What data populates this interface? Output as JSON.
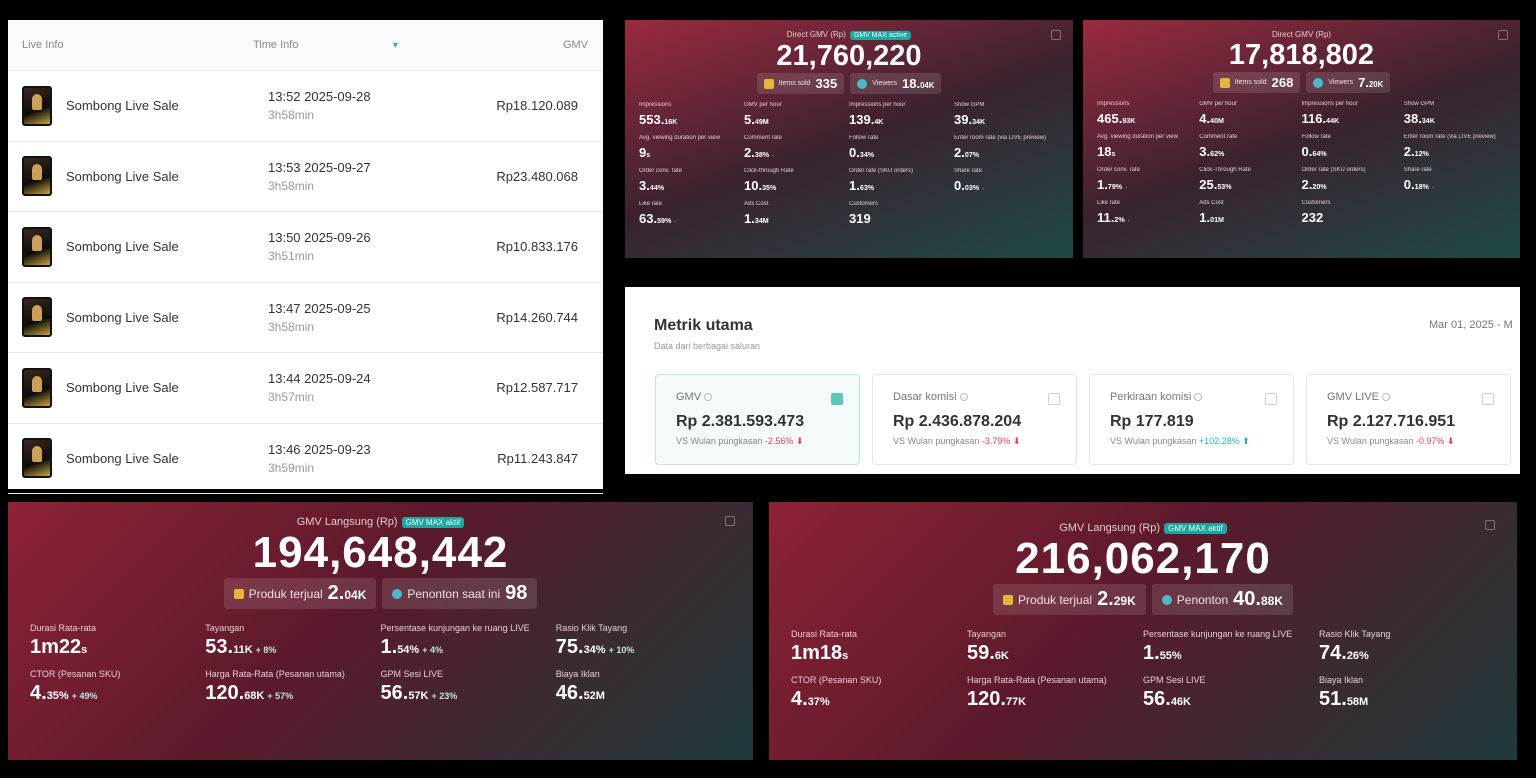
{
  "live_list": {
    "headers": {
      "live_info": "Live Info",
      "time_info": "Time Info",
      "gmv": "GMV"
    },
    "rows": [
      {
        "name": "Sombong Live Sale",
        "time": "13:52 2025-09-28",
        "duration": "3h58min",
        "gmv": "Rp18.120.089"
      },
      {
        "name": "Sombong Live Sale",
        "time": "13:53 2025-09-27",
        "duration": "3h58min",
        "gmv": "Rp23.480.068"
      },
      {
        "name": "Sombong Live Sale",
        "time": "13:50 2025-09-26",
        "duration": "3h51min",
        "gmv": "Rp10.833.176"
      },
      {
        "name": "Sombong Live Sale",
        "time": "13:47 2025-09-25",
        "duration": "3h58min",
        "gmv": "Rp14.260.744"
      },
      {
        "name": "Sombong Live Sale",
        "time": "13:44 2025-09-24",
        "duration": "3h57min",
        "gmv": "Rp12.587.717"
      },
      {
        "name": "Sombong Live Sale",
        "time": "13:46 2025-09-23",
        "duration": "3h59min",
        "gmv": "Rp11.243.847"
      }
    ]
  },
  "card_a": {
    "label": "Direct GMV (Rp)",
    "badge": "GMV MAX active",
    "value": "21,760,220",
    "items_sold_label": "Items sold",
    "items_sold": "335",
    "viewers_label": "Viewers",
    "viewers": "18.",
    "viewers_unit": "04K",
    "metrics": [
      {
        "label": "Impressions",
        "value": "553.",
        "unit": "16K",
        "delta": ""
      },
      {
        "label": "GMV per hour",
        "value": "5.",
        "unit": "49M",
        "delta": ""
      },
      {
        "label": "Impressions per hour",
        "value": "139.",
        "unit": "4K",
        "delta": ""
      },
      {
        "label": "Show GPM",
        "value": "39.",
        "unit": "34K",
        "delta": ""
      },
      {
        "label": "Avg. viewing duration per view",
        "value": "9",
        "unit": "s",
        "delta": ""
      },
      {
        "label": "Comment rate",
        "value": "2.",
        "unit": "38%",
        "delta": "-"
      },
      {
        "label": "Follow rate",
        "value": "0.",
        "unit": "34%",
        "delta": ""
      },
      {
        "label": "Enter room rate (via LIVE preview)",
        "value": "2.",
        "unit": "07%",
        "delta": ""
      },
      {
        "label": "Order conv. rate",
        "value": "3.",
        "unit": "44%",
        "delta": ""
      },
      {
        "label": "Click-through Rate",
        "value": "10.",
        "unit": "35%",
        "delta": ""
      },
      {
        "label": "Order rate (SKU orders)",
        "value": "1.",
        "unit": "63%",
        "delta": ""
      },
      {
        "label": "Share rate",
        "value": "0.",
        "unit": "03%",
        "delta": "-"
      },
      {
        "label": "Like rate",
        "value": "63.",
        "unit": "59%",
        "delta": "-"
      },
      {
        "label": "Ads Cost",
        "value": "1.",
        "unit": "34M",
        "delta": ""
      },
      {
        "label": "Customers",
        "value": "319",
        "unit": "",
        "delta": ""
      },
      {
        "label": "",
        "value": "",
        "unit": "",
        "delta": ""
      }
    ]
  },
  "card_b": {
    "label": "Direct GMV (Rp)",
    "badge": "",
    "value": "17,818,802",
    "items_sold_label": "Items sold",
    "items_sold": "268",
    "viewers_label": "Viewers",
    "viewers": "7.",
    "viewers_unit": "20K",
    "metrics": [
      {
        "label": "Impressions",
        "value": "465.",
        "unit": "93K",
        "delta": ""
      },
      {
        "label": "GMV per hour",
        "value": "4.",
        "unit": "40M",
        "delta": ""
      },
      {
        "label": "Impressions per hour",
        "value": "116.",
        "unit": "44K",
        "delta": ""
      },
      {
        "label": "Show GPM",
        "value": "38.",
        "unit": "34K",
        "delta": ""
      },
      {
        "label": "Avg. viewing duration per view",
        "value": "18",
        "unit": "s",
        "delta": ""
      },
      {
        "label": "Comment rate",
        "value": "3.",
        "unit": "62%",
        "delta": ""
      },
      {
        "label": "Follow rate",
        "value": "0.",
        "unit": "64%",
        "delta": ""
      },
      {
        "label": "Enter room rate (via LIVE preview)",
        "value": "2.",
        "unit": "12%",
        "delta": ""
      },
      {
        "label": "Order conv. rate",
        "value": "1.",
        "unit": "79%",
        "delta": "-"
      },
      {
        "label": "Click-Through Rate",
        "value": "25.",
        "unit": "53%",
        "delta": ""
      },
      {
        "label": "Order rate (SKU orders)",
        "value": "2.",
        "unit": "20%",
        "delta": ""
      },
      {
        "label": "Share rate",
        "value": "0.",
        "unit": "18%",
        "delta": "-"
      },
      {
        "label": "Like rate",
        "value": "11.",
        "unit": "2%",
        "delta": "-"
      },
      {
        "label": "Ads Cost",
        "value": "1.",
        "unit": "01M",
        "delta": ""
      },
      {
        "label": "Customers",
        "value": "232",
        "unit": "",
        "delta": ""
      },
      {
        "label": "",
        "value": "",
        "unit": "",
        "delta": ""
      }
    ]
  },
  "metrik": {
    "title": "Metrik utama",
    "subtitle": "Data dari berbagai saluran",
    "date": "Mar 01, 2025 - M",
    "cards": [
      {
        "label": "GMV",
        "value": "Rp 2.381.593.473",
        "vs": "VS Wulan pungkasan",
        "delta": "-2.56%",
        "dir": "neg"
      },
      {
        "label": "Dasar komisi",
        "value": "Rp 2.436.878.204",
        "vs": "VS Wulan pungkasan",
        "delta": "-3.79%",
        "dir": "neg"
      },
      {
        "label": "Perkiraan komisi",
        "value": "Rp 177.819",
        "vs": "VS Wulan pungkasan",
        "delta": "+102.28%",
        "dir": "pos"
      },
      {
        "label": "GMV LIVE",
        "value": "Rp 2.127.716.951",
        "vs": "VS Wulan pungkasan",
        "delta": "-0.97%",
        "dir": "neg"
      }
    ]
  },
  "card_c": {
    "label": "GMV Langsung (Rp)",
    "badge": "GMV MAX aktif",
    "value": "194,648,442",
    "produk_label": "Produk terjual",
    "produk": "2.",
    "produk_unit": "04K",
    "penonton_label": "Penonton saat ini",
    "penonton": "98",
    "penonton_unit": "",
    "metrics": [
      {
        "label": "Durasi Rata-rata",
        "value": "1m22",
        "unit": "s",
        "delta": ""
      },
      {
        "label": "Tayangan",
        "value": "53.",
        "unit": "11K",
        "delta": "+ 8%"
      },
      {
        "label": "Persentase kunjungan ke ruang LIVE",
        "value": "1.",
        "unit": "54%",
        "delta": "+ 4%"
      },
      {
        "label": "Rasio Klik Tayang",
        "value": "75.",
        "unit": "34%",
        "delta": "+ 10%"
      },
      {
        "label": "CTOR (Pesanan SKU)",
        "value": "4.",
        "unit": "35%",
        "delta": "+ 49%"
      },
      {
        "label": "Harga Rata-Rata (Pesanan utama)",
        "value": "120.",
        "unit": "68K",
        "delta": "+ 57%"
      },
      {
        "label": "GPM Sesi LIVE",
        "value": "56.",
        "unit": "57K",
        "delta": "+ 23%"
      },
      {
        "label": "Biaya Iklan",
        "value": "46.",
        "unit": "52M",
        "delta": ""
      }
    ]
  },
  "card_d": {
    "label": "GMV Langsung (Rp)",
    "badge": "GMV MAX aktif",
    "value": "216,062,170",
    "produk_label": "Produk terjual",
    "produk": "2.",
    "produk_unit": "29K",
    "penonton_label": "Penonton",
    "penonton": "40.",
    "penonton_unit": "88K",
    "metrics": [
      {
        "label": "Durasi Rata-rata",
        "value": "1m18",
        "unit": "s",
        "delta": ""
      },
      {
        "label": "Tayangan",
        "value": "59.",
        "unit": "6K",
        "delta": ""
      },
      {
        "label": "Persentase kunjungan ke ruang LIVE",
        "value": "1.",
        "unit": "55%",
        "delta": ""
      },
      {
        "label": "Rasio Klik Tayang",
        "value": "74.",
        "unit": "26%",
        "delta": ""
      },
      {
        "label": "CTOR (Pesanan SKU)",
        "value": "4.",
        "unit": "37%",
        "delta": ""
      },
      {
        "label": "Harga Rata-Rata (Pesanan utama)",
        "value": "120.",
        "unit": "77K",
        "delta": ""
      },
      {
        "label": "GPM Sesi LIVE",
        "value": "56.",
        "unit": "46K",
        "delta": ""
      },
      {
        "label": "Biaya Iklan",
        "value": "51.",
        "unit": "58M",
        "delta": ""
      }
    ]
  }
}
